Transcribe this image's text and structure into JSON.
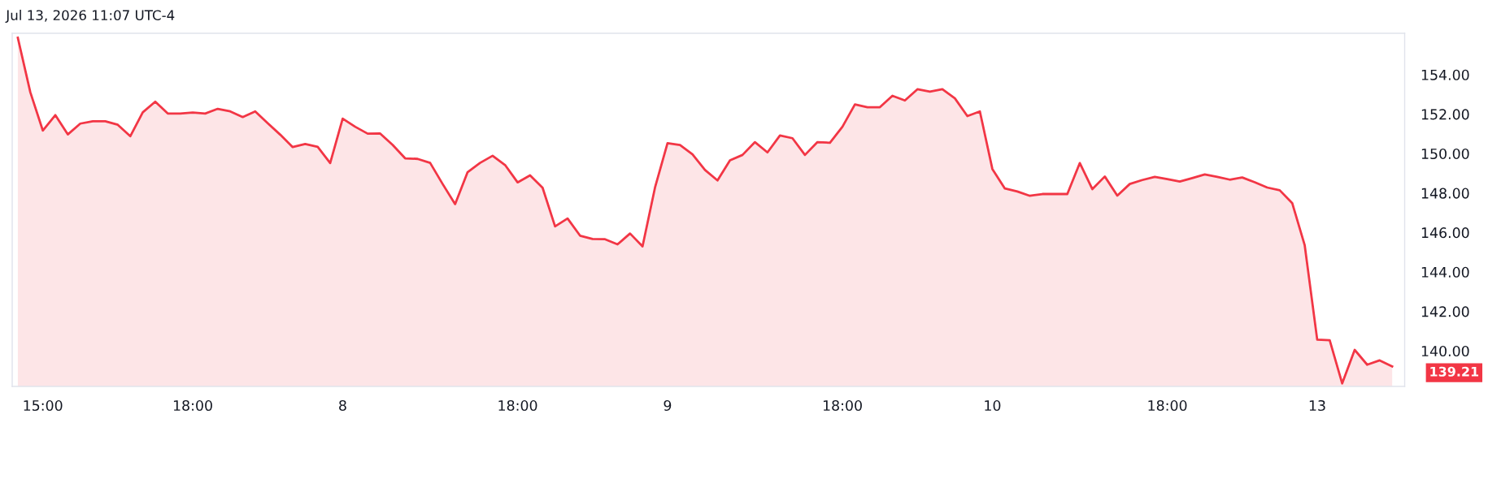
{
  "chart_data": {
    "type": "area",
    "annotations": [
      "Jul 13, 2026 11:07 UTC-4",
      "139.21"
    ],
    "categories": [
      null,
      null,
      "15:00",
      null,
      null,
      null,
      null,
      null,
      null,
      null,
      null,
      null,
      null,
      null,
      "18:00",
      null,
      null,
      null,
      null,
      null,
      null,
      null,
      null,
      null,
      null,
      null,
      "8",
      null,
      null,
      null,
      null,
      null,
      null,
      null,
      null,
      null,
      null,
      null,
      null,
      null,
      "18:00",
      null,
      null,
      null,
      null,
      null,
      null,
      null,
      null,
      null,
      null,
      null,
      "9",
      null,
      null,
      null,
      null,
      null,
      null,
      null,
      null,
      null,
      null,
      null,
      null,
      null,
      "18:00",
      null,
      null,
      null,
      null,
      null,
      null,
      null,
      null,
      null,
      null,
      null,
      "10",
      null,
      null,
      null,
      null,
      null,
      null,
      null,
      null,
      null,
      null,
      null,
      null,
      null,
      "18:00",
      null,
      null,
      null,
      null,
      null,
      null,
      null,
      null,
      null,
      null,
      null,
      "13",
      null,
      null,
      null,
      null,
      null,
      null
    ],
    "series": [
      {
        "color": "#f23645",
        "values": [
          155.87,
          153.11,
          151.17,
          151.95,
          150.97,
          151.52,
          151.64,
          151.64,
          151.46,
          150.88,
          152.09,
          152.63,
          152.03,
          152.03,
          152.08,
          152.03,
          152.27,
          152.14,
          151.85,
          152.14,
          151.54,
          150.96,
          150.33,
          150.49,
          150.34,
          149.52,
          151.77,
          151.36,
          151.01,
          151.02,
          150.44,
          149.76,
          149.73,
          149.53,
          148.46,
          147.44,
          149.06,
          149.53,
          149.89,
          149.42,
          148.54,
          148.9,
          148.27,
          146.31,
          146.71,
          145.84,
          145.67,
          145.66,
          145.4,
          145.95,
          145.3,
          148.28,
          150.53,
          150.43,
          149.96,
          149.17,
          148.64,
          149.66,
          149.93,
          150.58,
          150.06,
          150.92,
          150.78,
          149.93,
          150.58,
          150.55,
          151.36,
          152.49,
          152.35,
          152.35,
          152.93,
          152.69,
          153.26,
          153.14,
          153.26,
          152.8,
          151.9,
          152.14,
          149.22,
          148.23,
          148.08,
          147.86,
          147.95,
          147.95,
          147.95,
          149.52,
          148.2,
          148.84,
          147.87,
          148.46,
          148.66,
          148.82,
          148.71,
          148.58,
          148.76,
          148.94,
          148.82,
          148.68,
          148.79,
          148.55,
          148.28,
          148.14,
          147.49,
          145.35,
          140.57,
          140.54,
          138.35,
          140.05,
          139.3,
          139.52,
          139.21
        ]
      }
    ],
    "ylim": [
      138.2,
      156.1
    ],
    "yticks": [
      {
        "value": 140,
        "label": "140.00"
      },
      {
        "value": 142,
        "label": "142.00"
      },
      {
        "value": 144,
        "label": "144.00"
      },
      {
        "value": 146,
        "label": "146.00"
      },
      {
        "value": 148,
        "label": "148.00"
      },
      {
        "value": 150,
        "label": "150.00"
      },
      {
        "value": 152,
        "label": "152.00"
      },
      {
        "value": 154,
        "label": "154.00"
      }
    ],
    "grid": false
  }
}
